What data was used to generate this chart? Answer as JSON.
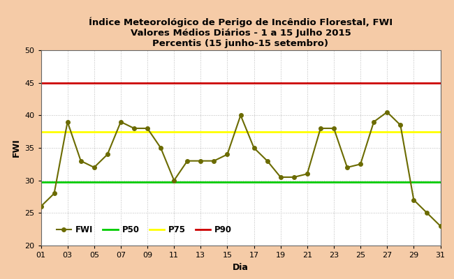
{
  "title_line1": "Índice Meteorológico de Perigo de Incêndio Florestal, FWI",
  "title_line2": "Valores Médios Diários - 1 a 15 Julho 2015",
  "title_line3": "Percentis (15 junho-15 setembro)",
  "xlabel": "Dia",
  "ylabel": "FWI",
  "background_color": "#f5cba7",
  "plot_bg_color": "#ffffff",
  "ylim": [
    20,
    50
  ],
  "yticks": [
    20,
    25,
    30,
    35,
    40,
    45,
    50
  ],
  "xticks": [
    1,
    3,
    5,
    7,
    9,
    11,
    13,
    15,
    17,
    19,
    21,
    23,
    25,
    27,
    29,
    31
  ],
  "xtick_labels": [
    "01",
    "03",
    "05",
    "07",
    "09",
    "11",
    "13",
    "15",
    "17",
    "19",
    "21",
    "23",
    "25",
    "27",
    "29",
    "31"
  ],
  "fwi_days": [
    1,
    2,
    3,
    4,
    5,
    6,
    7,
    8,
    9,
    10,
    11,
    12,
    13,
    14,
    15,
    16,
    17,
    18,
    19,
    20,
    21,
    22,
    23,
    24,
    25,
    26,
    27,
    28,
    29,
    30,
    31
  ],
  "fwi_values": [
    26,
    28,
    39,
    33,
    32,
    34,
    39,
    38,
    38,
    35,
    30,
    33,
    33,
    33,
    34,
    40,
    35,
    33,
    30.5,
    30.5,
    31,
    38,
    38,
    32,
    32.5,
    39,
    40.5,
    38.5,
    27,
    25,
    23
  ],
  "fwi_color": "#6b6b00",
  "fwi_linewidth": 1.5,
  "fwi_marker": "o",
  "fwi_markersize": 4,
  "p50_value": 29.8,
  "p50_color": "#00cc00",
  "p50_linewidth": 2.0,
  "p75_value": 37.5,
  "p75_color": "#ffff00",
  "p75_linewidth": 2.0,
  "p90_value": 45,
  "p90_color": "#cc0000",
  "p90_linewidth": 2.0,
  "legend_labels": [
    "FWI",
    "P50",
    "P75",
    "P90"
  ],
  "grid_color": "#bbbbbb",
  "grid_linestyle": ":",
  "title_fontsize": 9.5,
  "axis_label_fontsize": 9,
  "tick_fontsize": 8,
  "legend_fontsize": 8.5
}
